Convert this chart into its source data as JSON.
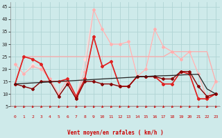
{
  "xlabel": "Vent moyen/en rafales ( km/h )",
  "background_color": "#ceeaea",
  "grid_color": "#b0d4d4",
  "x_ticks": [
    0,
    1,
    2,
    3,
    4,
    5,
    6,
    7,
    8,
    9,
    10,
    11,
    12,
    13,
    14,
    15,
    16,
    17,
    18,
    19,
    20,
    21,
    22,
    23
  ],
  "y_ticks": [
    5,
    10,
    15,
    20,
    25,
    30,
    35,
    40,
    45
  ],
  "ylim": [
    5,
    47
  ],
  "xlim": [
    -0.5,
    23.5
  ],
  "series": [
    {
      "y": [
        22,
        18,
        21,
        20,
        16,
        10,
        16,
        9,
        19,
        44,
        36,
        30,
        30,
        31,
        17,
        20,
        36,
        29,
        27,
        24,
        27,
        18,
        8,
        15
      ],
      "color": "#ffb0b0",
      "lw": 0.8,
      "marker": "D",
      "ms": 2.0,
      "zorder": 2
    },
    {
      "y": [
        14,
        25,
        24,
        22,
        15,
        15,
        16,
        9,
        16,
        33,
        21,
        23,
        13,
        13,
        17,
        17,
        17,
        14,
        14,
        19,
        18,
        8,
        8,
        10
      ],
      "color": "#dd2222",
      "lw": 1.2,
      "marker": "D",
      "ms": 2.0,
      "zorder": 4
    },
    {
      "y": [
        14,
        13,
        12,
        15,
        15,
        9,
        14,
        8,
        15,
        15,
        14,
        14,
        13,
        13,
        17,
        17,
        17,
        16,
        16,
        19,
        19,
        13,
        9,
        10
      ],
      "color": "#880000",
      "lw": 1.0,
      "marker": "D",
      "ms": 2.0,
      "zorder": 5
    },
    {
      "y": [
        22,
        18,
        22,
        20,
        16,
        10,
        16,
        9,
        24,
        44,
        36,
        30,
        30,
        31,
        17,
        20,
        36,
        29,
        27,
        24,
        27,
        18,
        8,
        15
      ],
      "color": "#ffdddd",
      "lw": 0.8,
      "marker": "D",
      "ms": 2.0,
      "zorder": 1
    },
    {
      "y": [
        14,
        25,
        24,
        22,
        15,
        15,
        15,
        8,
        16,
        33,
        21,
        23,
        13,
        13,
        17,
        17,
        17,
        14,
        14,
        19,
        18,
        8,
        8,
        10
      ],
      "color": "#ff7777",
      "lw": 0.9,
      "marker": "D",
      "ms": 2.0,
      "zorder": 3
    },
    {
      "y": [
        14,
        25,
        25,
        25,
        25,
        25,
        25,
        25,
        25,
        25,
        25,
        25,
        25,
        25,
        25,
        25,
        25,
        25,
        27,
        27,
        27,
        27,
        27,
        15
      ],
      "color": "#ffaaaa",
      "lw": 0.9,
      "marker": null,
      "ms": 0,
      "zorder": 2
    },
    {
      "y": [
        14,
        14.2,
        14.4,
        14.6,
        14.8,
        15.0,
        15.2,
        15.4,
        15.6,
        15.8,
        16.0,
        16.2,
        16.4,
        16.6,
        16.8,
        17.0,
        17.2,
        17.3,
        17.4,
        17.6,
        17.8,
        17.9,
        12,
        10
      ],
      "color": "#222222",
      "lw": 0.9,
      "marker": null,
      "ms": 0,
      "zorder": 6
    }
  ],
  "arrow_color": "#cc0000"
}
